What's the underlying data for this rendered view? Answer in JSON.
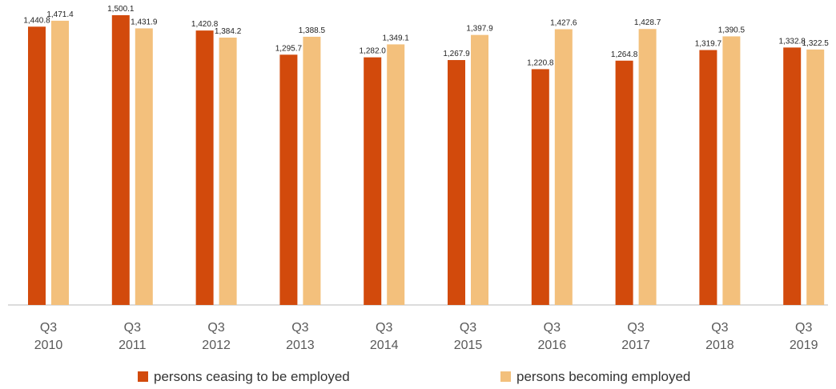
{
  "chart_data": {
    "type": "bar",
    "title": "",
    "xlabel": "",
    "ylabel": "",
    "ylim": [
      0,
      1500.1
    ],
    "grid": false,
    "legend_position": "bottom",
    "categories": [
      [
        "Q3",
        "2010"
      ],
      [
        "Q3",
        "2011"
      ],
      [
        "Q3",
        "2012"
      ],
      [
        "Q3",
        "2013"
      ],
      [
        "Q3",
        "2014"
      ],
      [
        "Q3",
        "2015"
      ],
      [
        "Q3",
        "2016"
      ],
      [
        "Q3",
        "2017"
      ],
      [
        "Q3",
        "2018"
      ],
      [
        "Q3",
        "2019"
      ]
    ],
    "series": [
      {
        "name": "persons ceasing to be employed",
        "color": "#D24A0C",
        "values": [
          1440.8,
          1500.1,
          1420.8,
          1295.7,
          1282.0,
          1267.9,
          1220.8,
          1264.8,
          1319.7,
          1332.8
        ],
        "labels": [
          "1,440.8",
          "1,500.1",
          "1,420.8",
          "1,295.7",
          "1,282.0",
          "1,267.9",
          "1,220.8",
          "1,264.8",
          "1,319.7",
          "1,332.8"
        ]
      },
      {
        "name": "persons becoming employed",
        "color": "#F3C07C",
        "values": [
          1471.4,
          1431.9,
          1384.2,
          1388.5,
          1349.1,
          1397.9,
          1427.6,
          1428.7,
          1390.5,
          1322.5
        ],
        "labels": [
          "1,471.4",
          "1,431.9",
          "1,384.2",
          "1,388.5",
          "1,349.1",
          "1,397.9",
          "1,427.6",
          "1,428.7",
          "1,390.5",
          "1,322.5"
        ]
      }
    ]
  }
}
